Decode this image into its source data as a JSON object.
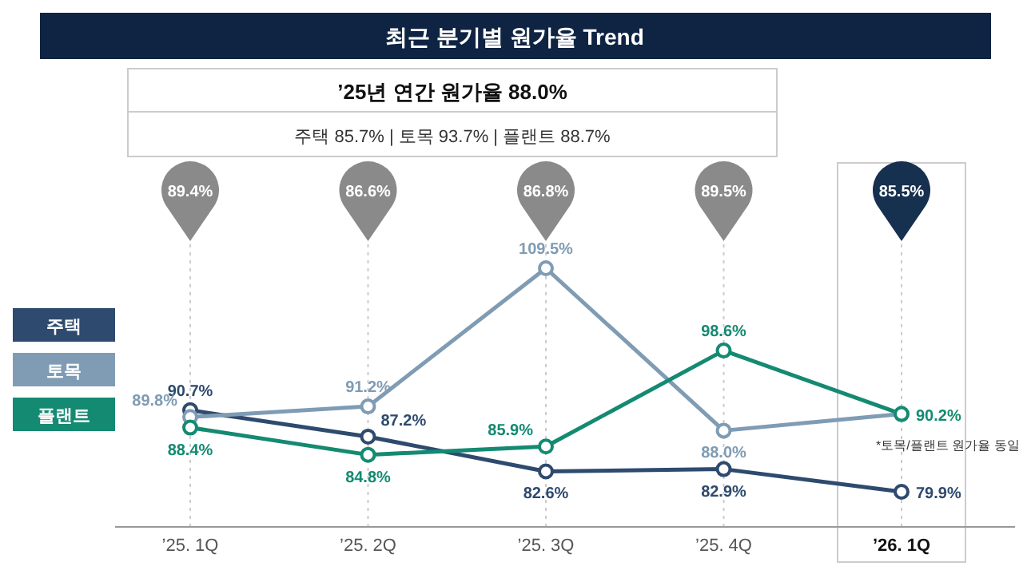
{
  "chart_data": {
    "type": "line",
    "title": "최근 분기별 원가율 Trend",
    "subtitle": "’25년 연간 원가율 88.0%",
    "categories": [
      "’25. 1Q",
      "’25. 2Q",
      "’25. 3Q",
      "’25. 4Q",
      "’26. 1Q"
    ],
    "series": [
      {
        "name": "주택",
        "color": "#2e4a6e",
        "values": [
          90.7,
          87.2,
          82.6,
          82.9,
          79.9
        ],
        "value_labels": [
          "90.7%",
          "87.2%",
          "82.6%",
          "82.9%",
          "79.9%"
        ]
      },
      {
        "name": "토목",
        "color": "#7f9cb4",
        "values": [
          89.8,
          91.2,
          109.5,
          88.0,
          90.2
        ],
        "value_labels": [
          "89.8%",
          "91.2%",
          "109.5%",
          "88.0%",
          null
        ]
      },
      {
        "name": "플랜트",
        "color": "#148a72",
        "values": [
          88.4,
          84.8,
          85.9,
          98.6,
          90.2
        ],
        "value_labels": [
          "88.4%",
          "84.8%",
          "85.9%",
          "98.6%",
          "90.2%"
        ]
      }
    ],
    "annotations": [
      "주택 85.7% | 토목 93.7% | 플랜트 88.7%",
      "89.4%",
      "86.6%",
      "86.8%",
      "89.5%",
      "85.5%",
      {
        "text": "*토목/플랜트 원가율 동일",
        "x": "’26. 1Q",
        "y": 90.2
      }
    ],
    "marker": "circle",
    "grid": "x",
    "legend": "left"
  }
}
